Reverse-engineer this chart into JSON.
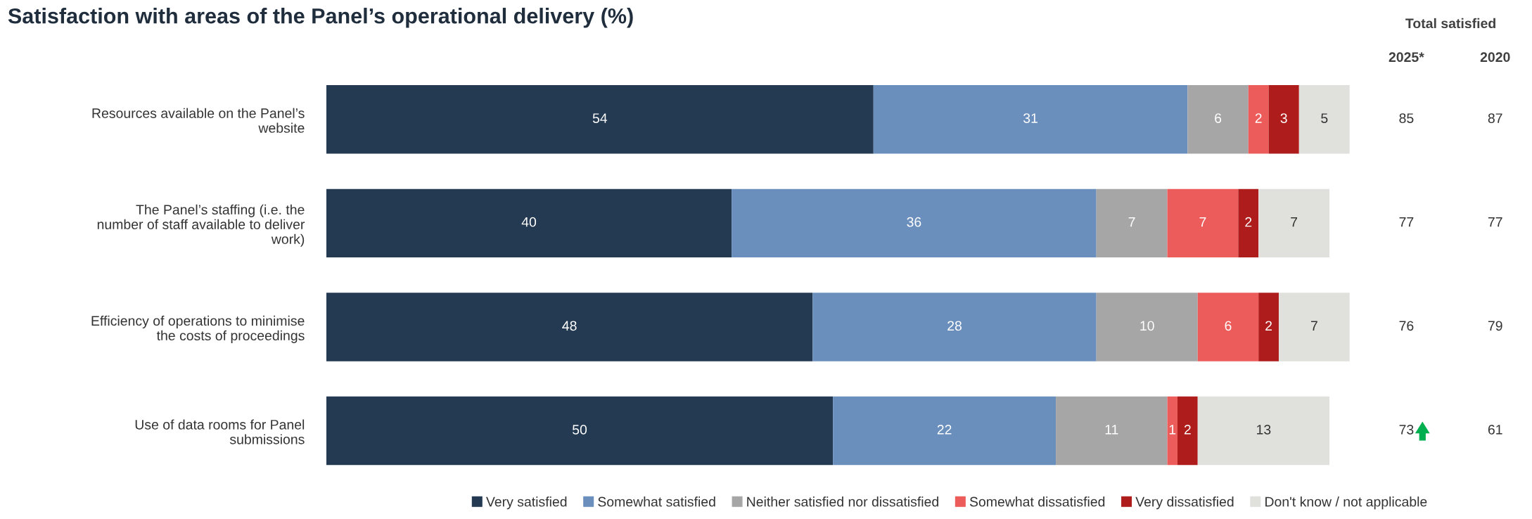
{
  "chart_data": {
    "type": "bar",
    "orientation": "horizontal",
    "stacked": true,
    "xlim": [
      0,
      101
    ],
    "tick_labels": "y",
    "data_labels": true,
    "legend": "bottom",
    "grid": false,
    "title": "Satisfaction with areas of the Panel’s operational delivery (%)",
    "categories": [
      "Resources available on the Panel’s\nwebsite",
      "The Panel’s staffing (i.e. the\nnumber of staff available to deliver\nwork)",
      "Efficiency of operations to minimise\nthe costs of proceedings",
      "Use of data rooms for Panel\nsubmissions"
    ],
    "series": [
      {
        "name": "Very satisfied",
        "color": "#243a53",
        "values": [
          54,
          40,
          48,
          50
        ]
      },
      {
        "name": "Somewhat satisfied",
        "color": "#6a8fbd",
        "values": [
          31,
          36,
          28,
          22
        ]
      },
      {
        "name": "Neither satisfied nor dissatisfied",
        "color": "#a6a6a6",
        "values": [
          6,
          7,
          10,
          11
        ]
      },
      {
        "name": "Somewhat dissatisfied",
        "color": "#ec5c5a",
        "values": [
          2,
          7,
          6,
          1
        ]
      },
      {
        "name": "Very dissatisfied",
        "color": "#ae1c1c",
        "values": [
          3,
          2,
          2,
          2
        ]
      },
      {
        "name": "Don't know / not applicable",
        "color": "#e0e0dc",
        "values": [
          5,
          7,
          7,
          13
        ]
      }
    ],
    "annotations": [
      "Total satisfied",
      "2025*",
      "2020",
      "85",
      "87",
      "77",
      "77",
      "76",
      "79",
      "73",
      "61"
    ]
  }
}
